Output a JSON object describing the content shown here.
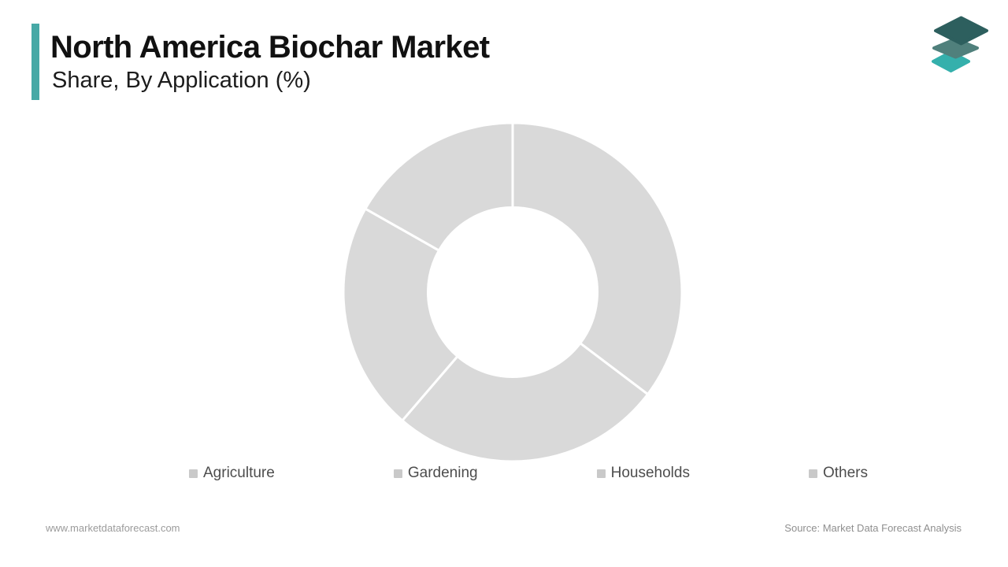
{
  "header": {
    "title": "North America Biochar Market",
    "subtitle": "Share, By Application (%)",
    "accent_color": "#47a9a6",
    "logo_layer_colors": [
      "#35b0ac",
      "#50807c",
      "#2d5f5e"
    ]
  },
  "chart_data": {
    "type": "pie",
    "variant": "donut",
    "title": "North America Biochar Market Share, By Application (%)",
    "categories": [
      "Agriculture",
      "Gardening",
      "Households",
      "Others"
    ],
    "values": [
      35.3,
      26.0,
      21.9,
      16.8
    ],
    "unit": "%",
    "start_angle_deg": 0,
    "direction": "clockwise",
    "inner_radius_ratio": 0.5,
    "segment_color": "#d9d9d9",
    "divider_color": "#ffffff",
    "legend_position": "bottom",
    "legend_marker_color": "#c9c9c9",
    "data_labels": "none"
  },
  "footer": {
    "website": "www.marketdataforecast.com",
    "source": "Source: Market Data Forecast Analysis"
  }
}
